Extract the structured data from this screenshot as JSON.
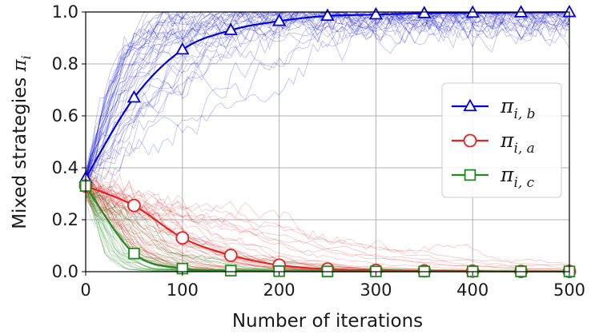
{
  "chart_data": {
    "type": "line",
    "title": "",
    "xlabel": "Number of iterations",
    "ylabel_main": "Mixed strategies ",
    "ylabel_symbol": "π",
    "ylabel_sub": "i",
    "xlim": [
      0,
      500
    ],
    "ylim": [
      0,
      1
    ],
    "xticks": [
      "0",
      "100",
      "200",
      "300",
      "400",
      "500"
    ],
    "yticks": [
      "0.0",
      "0.2",
      "0.4",
      "0.6",
      "0.8",
      "1.0"
    ],
    "grid": true,
    "legend_position": "right",
    "series": [
      {
        "name_symbol": "π",
        "name_sub": "i, b",
        "color": "#0000dd",
        "marker": "triangle",
        "x": [
          0,
          50,
          100,
          150,
          200,
          250,
          300,
          350,
          400,
          450,
          500
        ],
        "y": [
          0.36,
          0.67,
          0.855,
          0.93,
          0.965,
          0.985,
          0.99,
          0.995,
          0.997,
          0.998,
          0.999
        ]
      },
      {
        "name_symbol": "π",
        "name_sub": "i, a",
        "color": "#e8201f",
        "marker": "circle",
        "x": [
          0,
          50,
          100,
          150,
          200,
          250,
          300,
          350,
          400,
          450,
          500
        ],
        "y": [
          0.33,
          0.255,
          0.13,
          0.063,
          0.025,
          0.01,
          0.005,
          0.003,
          0.002,
          0.001,
          0.001
        ]
      },
      {
        "name_symbol": "π",
        "name_sub": "i, c",
        "color": "#1e8a1e",
        "marker": "square",
        "x": [
          0,
          50,
          100,
          150,
          200,
          250,
          300,
          350,
          400,
          450,
          500
        ],
        "y": [
          0.33,
          0.07,
          0.012,
          0.004,
          0.002,
          0.001,
          0.001,
          0.001,
          0.001,
          0.001,
          0.001
        ]
      }
    ]
  }
}
